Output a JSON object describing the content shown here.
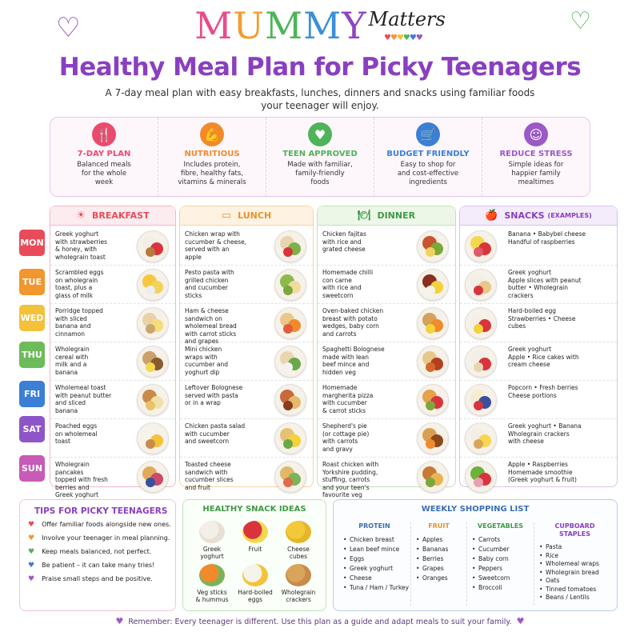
{
  "brand": {
    "letters": [
      "M",
      "U",
      "M",
      "M",
      "Y"
    ],
    "letter_colors": [
      "#e94b8a",
      "#f39c2f",
      "#4fb35a",
      "#3b8fd9",
      "#8e44c2"
    ],
    "script": "Matters"
  },
  "title": "Healthy Meal Plan for Picky Teenagers",
  "subtitle": "A 7-day meal plan with easy breakfasts, lunches, dinners and snacks using familiar foods your teenager will enjoy.",
  "features": [
    {
      "icon": "cutlery-icon",
      "glyph": "🍴",
      "color": "#e94b6e",
      "title": "7-DAY PLAN",
      "desc": "Balanced meals\nfor the whole\nweek"
    },
    {
      "icon": "muscle-icon",
      "glyph": "💪",
      "color": "#f08a2a",
      "title": "NUTRITIOUS",
      "desc": "Includes protein,\nfibre, healthy fats,\nvitamins & minerals"
    },
    {
      "icon": "heart-icon",
      "glyph": "♥",
      "color": "#4fb35a",
      "title": "TEEN APPROVED",
      "desc": "Made with familiar,\nfamily-friendly\nfoods"
    },
    {
      "icon": "basket-icon",
      "glyph": "🛒",
      "color": "#3b7fd6",
      "title": "BUDGET FRIENDLY",
      "desc": "Easy to shop for\nand cost-effective\ningredients"
    },
    {
      "icon": "smile-icon",
      "glyph": "☺",
      "color": "#9b59c6",
      "title": "REDUCE STRESS",
      "desc": "Simple ideas for\nhappier family\nmealtimes"
    }
  ],
  "days": [
    {
      "label": "MON",
      "color": "#e94b5a"
    },
    {
      "label": "TUE",
      "color": "#f2962e"
    },
    {
      "label": "WED",
      "color": "#f3c13a"
    },
    {
      "label": "THU",
      "color": "#6dbb5a"
    },
    {
      "label": "FRI",
      "color": "#3b7fd6"
    },
    {
      "label": "SAT",
      "color": "#8e55c8"
    },
    {
      "label": "SUN",
      "color": "#c85ab8"
    }
  ],
  "columns": [
    {
      "key": "breakfast",
      "title": "BREAKFAST",
      "icon": "sunrise-icon",
      "glyph": "☀",
      "color": "#e94b5a",
      "bg": "#fdecef",
      "border": "#f3b8c2",
      "meals": [
        "Greek yoghurt\nwith strawberries\n& honey, with\nwholegrain toast",
        "Scrambled eggs\non wholegrain\ntoast, plus a\nglass of milk",
        "Porridge topped\nwith sliced\nbanana and\ncinnamon",
        "Wholegrain\ncereal with\nmilk and a\nbanana",
        "Wholemeal toast\nwith peanut butter\nand sliced\nbanana",
        "Poached eggs\non wholemeal\ntoast",
        "Wholegrain pancakes\ntopped with fresh\nberries and\nGreek yoghurt"
      ]
    },
    {
      "key": "lunch",
      "title": "LUNCH",
      "icon": "lunchbox-icon",
      "glyph": "▭",
      "color": "#e8922a",
      "bg": "#fef3e3",
      "border": "#f5d39f",
      "meals": [
        "Chicken wrap with\ncucumber & cheese,\nserved with an\napple",
        "Pesto pasta with\ngrilled chicken\nand cucumber\nsticks",
        "Ham & cheese\nsandwich on\nwholemeal bread\nwith carrot sticks\nand grapes",
        "Mini chicken\nwraps with\ncucumber and\nyoghurt dip",
        "Leftover Bolognese\nserved with pasta\nor in a wrap",
        "Chicken pasta salad\nwith cucumber\nand sweetcorn",
        "Toasted cheese\nsandwich with\ncucumber slices\nand fruit"
      ]
    },
    {
      "key": "dinner",
      "title": "DINNER",
      "icon": "plate-icon",
      "glyph": "🍽",
      "color": "#3e9a45",
      "bg": "#ecf7e8",
      "border": "#bfe3b8",
      "meals": [
        "Chicken fajitas\nwith rice and\ngrated cheese",
        "Homemade chilli\ncon carne\nwith rice and\nsweetcorn",
        "Oven-baked chicken\nbreast with potato\nwedges, baby corn\nand carrots",
        "Spaghetti Bolognese\nmade with lean\nbeef mince and\nhidden veg",
        "Homemade\nmargherita pizza\nwith cucumber\n& carrot sticks",
        "Shepherd's pie\n(or cottage pie)\nwith carrots\nand gravy",
        "Roast chicken with\nYorkshire pudding,\nstuffing, carrots\nand your teen's\nfavourite veg"
      ]
    },
    {
      "key": "snacks",
      "title": "SNACKS",
      "title_note": "(EXAMPLES)",
      "icon": "apple-icon",
      "glyph": "🍎",
      "color": "#8a3fbf",
      "bg": "#f4ecfa",
      "border": "#d8c2ec",
      "meals": [
        "Banana  •  Babybel cheese\nHandful of raspberries",
        "Greek yoghurt\nApple slices with peanut\nbutter  •  Wholegrain crackers",
        "Hard-boiled egg\nStrawberries  •  Cheese cubes",
        "Greek yoghurt\nApple  •  Rice cakes with\ncream cheese",
        "Popcorn  •  Fresh berries\nCheese portions",
        "Greek yoghurt  •  Banana\nWholegrain crackers\nwith cheese",
        "Apple  •  Raspberries\nHomemade smoothie\n(Greek yoghurt & fruit)"
      ]
    }
  ],
  "tips": {
    "title": "TIPS FOR PICKY TEENAGERS",
    "items": [
      {
        "text": "Offer familiar foods alongside new ones.",
        "color": "#e94b5a"
      },
      {
        "text": "Involve your teenager in meal planning.",
        "color": "#f2962e"
      },
      {
        "text": "Keep meals balanced, not perfect.",
        "color": "#4fb35a"
      },
      {
        "text": "Be patient – it can take many tries!",
        "color": "#3b7fd6"
      },
      {
        "text": "Praise small steps and be positive.",
        "color": "#9b59c6"
      }
    ]
  },
  "snack_ideas": {
    "title": "HEALTHY SNACK IDEAS",
    "items": [
      "Greek\nyoghurt",
      "Fruit",
      "Cheese\ncubes",
      "Veg sticks\n& hummus",
      "Hard-boiled\neggs",
      "Wholegrain\ncrackers"
    ]
  },
  "shopping": {
    "title": "WEEKLY SHOPPING LIST",
    "columns": [
      {
        "title": "PROTEIN",
        "color": "#3b6fb6",
        "items": [
          "Chicken breast",
          "Lean beef mince",
          "Eggs",
          "Greek yoghurt",
          "Cheese",
          "Tuna / Ham / Turkey"
        ]
      },
      {
        "title": "FRUIT",
        "color": "#e8922a",
        "items": [
          "Apples",
          "Bananas",
          "Berries",
          "Grapes",
          "Oranges"
        ]
      },
      {
        "title": "VEGETABLES",
        "color": "#3e9a45",
        "items": [
          "Carrots",
          "Cucumber",
          "Baby corn",
          "Peppers",
          "Sweetcorn",
          "Broccoli"
        ]
      },
      {
        "title": "CUPBOARD\nSTAPLES",
        "color": "#8a3fbf",
        "items": [
          "Pasta",
          "Rice",
          "Wholemeal wraps",
          "Wholegrain bread",
          "Oats",
          "Tinned tomatoes",
          "Beans / Lentils"
        ]
      }
    ]
  },
  "footer": "Remember: Every teenager is different. Use this plan as a guide and adapt meals to suit your family."
}
